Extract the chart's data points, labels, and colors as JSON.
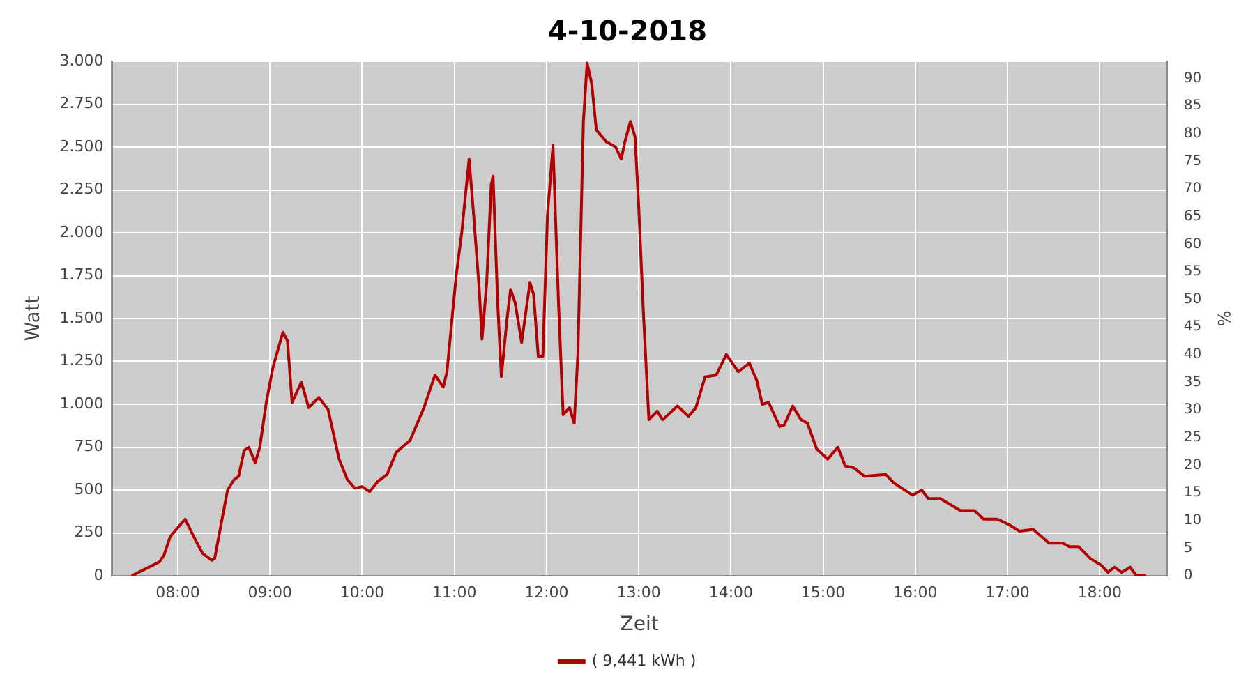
{
  "chart_data": {
    "type": "line",
    "title": "4-10-2018",
    "xlabel": "Zeit",
    "ylabel": "Watt",
    "y2label": "%",
    "xlim": [
      7.286,
      18.73
    ],
    "xticks": [
      {
        "value": 8,
        "label": "08:00"
      },
      {
        "value": 9,
        "label": "09:00"
      },
      {
        "value": 10,
        "label": "10:00"
      },
      {
        "value": 11,
        "label": "11:00"
      },
      {
        "value": 12,
        "label": "12:00"
      },
      {
        "value": 13,
        "label": "13:00"
      },
      {
        "value": 14,
        "label": "14:00"
      },
      {
        "value": 15,
        "label": "15:00"
      },
      {
        "value": 16,
        "label": "16:00"
      },
      {
        "value": 17,
        "label": "17:00"
      },
      {
        "value": 18,
        "label": "18:00"
      }
    ],
    "ylim": [
      0,
      3000
    ],
    "yticks": [
      0,
      250,
      500,
      750,
      {
        "value": 1000,
        "label": "1.000"
      },
      {
        "value": 1250,
        "label": "1.250"
      },
      {
        "value": 1500,
        "label": "1.500"
      },
      {
        "value": 1750,
        "label": "1.750"
      },
      {
        "value": 2000,
        "label": "2.000"
      },
      {
        "value": 2250,
        "label": "2.250"
      },
      {
        "value": 2500,
        "label": "2.500"
      },
      {
        "value": 2750,
        "label": "2.750"
      },
      {
        "value": 3000,
        "label": "3.000"
      }
    ],
    "y2lim": [
      0,
      93.1
    ],
    "y2ticks": [
      0,
      5,
      10,
      15,
      20,
      25,
      30,
      35,
      40,
      45,
      50,
      55,
      60,
      65,
      70,
      75,
      80,
      85,
      90
    ],
    "grid": true,
    "legend": "bottom",
    "marker": "none",
    "line_style": "solid",
    "series": [
      {
        "name": "( 9,441 kWh )",
        "color": "#b30000",
        "x": [
          7.5,
          7.65,
          7.8,
          7.85,
          7.92,
          8.08,
          8.19,
          8.27,
          8.37,
          8.4,
          8.54,
          8.61,
          8.66,
          8.72,
          8.77,
          8.84,
          8.89,
          8.96,
          9.03,
          9.14,
          9.19,
          9.24,
          9.34,
          9.42,
          9.53,
          9.63,
          9.75,
          9.84,
          9.92,
          10.0,
          10.08,
          10.17,
          10.27,
          10.37,
          10.52,
          10.67,
          10.79,
          10.88,
          10.92,
          11.02,
          11.08,
          11.16,
          11.21,
          11.27,
          11.3,
          11.35,
          11.4,
          11.42,
          11.47,
          11.51,
          11.57,
          11.61,
          11.66,
          11.73,
          11.82,
          11.86,
          11.91,
          11.96,
          12.01,
          12.07,
          12.13,
          12.18,
          12.25,
          12.3,
          12.34,
          12.4,
          12.44,
          12.49,
          12.54,
          12.65,
          12.75,
          12.81,
          12.85,
          12.91,
          12.96,
          13.0,
          13.05,
          13.11,
          13.2,
          13.26,
          13.42,
          13.54,
          13.62,
          13.72,
          13.84,
          13.95,
          14.08,
          14.2,
          14.28,
          14.34,
          14.41,
          14.53,
          14.58,
          14.67,
          14.76,
          14.83,
          14.93,
          15.05,
          15.16,
          15.24,
          15.33,
          15.45,
          15.68,
          15.77,
          15.97,
          16.07,
          16.14,
          16.27,
          16.49,
          16.64,
          16.74,
          16.89,
          17.01,
          17.13,
          17.28,
          17.45,
          17.6,
          17.67,
          17.77,
          17.9,
          18.02,
          18.09,
          18.16,
          18.24,
          18.33,
          18.4,
          18.5
        ],
        "values": [
          0,
          40,
          80,
          120,
          230,
          330,
          210,
          130,
          90,
          100,
          500,
          560,
          580,
          730,
          750,
          660,
          750,
          1010,
          1210,
          1420,
          1370,
          1010,
          1130,
          980,
          1040,
          970,
          680,
          560,
          510,
          520,
          490,
          550,
          590,
          720,
          790,
          980,
          1170,
          1100,
          1190,
          1750,
          2000,
          2430,
          2100,
          1670,
          1380,
          1700,
          2280,
          2330,
          1590,
          1160,
          1490,
          1670,
          1590,
          1360,
          1710,
          1640,
          1280,
          1280,
          2100,
          2510,
          1590,
          940,
          980,
          890,
          1290,
          2650,
          2990,
          2870,
          2600,
          2530,
          2500,
          2430,
          2530,
          2650,
          2560,
          2150,
          1540,
          910,
          960,
          910,
          990,
          930,
          980,
          1160,
          1170,
          1290,
          1190,
          1240,
          1140,
          1000,
          1010,
          870,
          880,
          990,
          910,
          890,
          740,
          680,
          750,
          640,
          630,
          580,
          590,
          540,
          470,
          500,
          450,
          450,
          380,
          380,
          330,
          330,
          300,
          260,
          270,
          190,
          190,
          170,
          170,
          100,
          60,
          20,
          50,
          20,
          50,
          0,
          0
        ]
      }
    ]
  }
}
